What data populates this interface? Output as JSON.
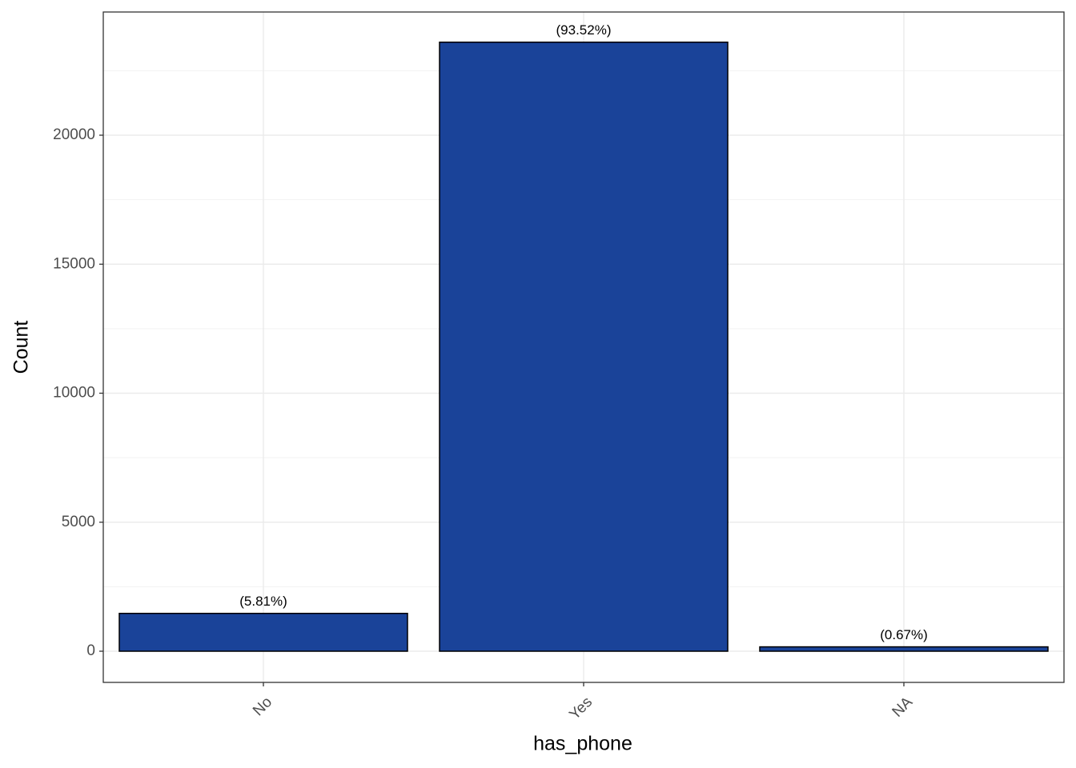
{
  "chart_data": {
    "type": "bar",
    "x_label": "has_phone",
    "y_label": "Count",
    "categories": [
      "No",
      "Yes",
      "NA"
    ],
    "values": [
      1466,
      23605,
      169
    ],
    "bar_labels": [
      "(5.81%)",
      "(93.52%)",
      "(0.67%)"
    ],
    "color": "#1a4399",
    "ylim": [
      -1209,
      24775
    ],
    "yticks": [
      0,
      5000,
      10000,
      15000,
      20000
    ],
    "minor_yticks": [
      2500,
      7500,
      12500,
      17500,
      22500
    ],
    "grid": true
  }
}
